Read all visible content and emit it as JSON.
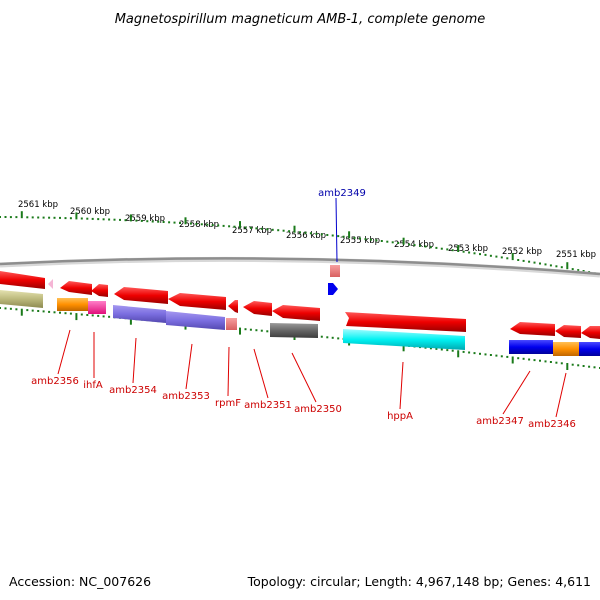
{
  "title": "Magnetospirillum magneticum AMB-1, complete genome",
  "footer": {
    "accession": "Accession: NC_007626",
    "summary": "Topology: circular; Length: 4,967,148 bp; Genes: 4,611"
  },
  "colors": {
    "backbone": "#999999",
    "tick": "#1a7a1a",
    "label_red": "#cc0000",
    "label_blue": "#0000aa",
    "leader_red": "#e00000",
    "leader_blue": "#0000cc"
  },
  "kbp_labels": [
    "2561 kbp",
    "2560 kbp",
    "2559 kbp",
    "2558 kbp",
    "2557 kbp",
    "2556 kbp",
    "2555 kbp",
    "2554 kbp",
    "2553 kbp",
    "2552 kbp",
    "2551 kbp"
  ],
  "gene_labels": {
    "amb2349": "amb2349",
    "amb2356": "amb2356",
    "ihfA": "ihfA",
    "amb2354": "amb2354",
    "amb2353": "amb2353",
    "rpmF": "rpmF",
    "amb2351": "amb2351",
    "amb2350": "amb2350",
    "hppA": "hppA",
    "amb2347": "amb2347",
    "amb2346": "amb2346"
  }
}
